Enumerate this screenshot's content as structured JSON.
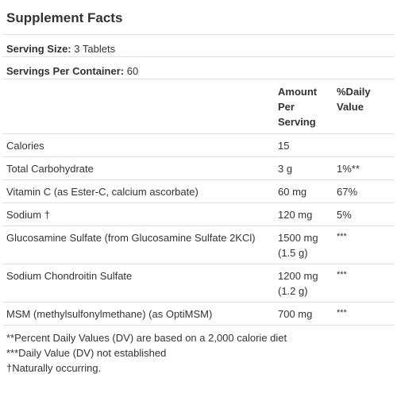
{
  "title": "Supplement Facts",
  "serving_size": {
    "label": "Serving Size:",
    "value": "3 Tablets"
  },
  "servings_per_container": {
    "label": "Servings Per Container:",
    "value": "60"
  },
  "columns": {
    "amount_line1": "Amount",
    "amount_line2": "Per",
    "amount_line3": "Serving",
    "dv_line1": "%Daily",
    "dv_line2": "Value"
  },
  "rows": [
    {
      "name": "Calories",
      "amount": "15",
      "amount2": "",
      "dv": ""
    },
    {
      "name": "Total Carbohydrate",
      "amount": "3 g",
      "amount2": "",
      "dv": "1%**"
    },
    {
      "name": "Vitamin C (as Ester-C, calcium ascorbate)",
      "amount": "60 mg",
      "amount2": "",
      "dv": "67%"
    },
    {
      "name": "Sodium †",
      "amount": "120 mg",
      "amount2": "",
      "dv": "5%"
    },
    {
      "name": "Glucosamine Sulfate (from Glucosamine Sulfate 2KCl)",
      "amount": "1500 mg",
      "amount2": "(1.5 g)",
      "dv": "***"
    },
    {
      "name": "Sodium Chondroitin Sulfate",
      "amount": "1200 mg",
      "amount2": "(1.2 g)",
      "dv": "***"
    },
    {
      "name": "MSM (methylsulfonylmethane) (as OptiMSM)",
      "amount": "700 mg",
      "amount2": "",
      "dv": "***"
    }
  ],
  "footnotes": [
    "**Percent Daily Values (DV) are based on a 2,000 calorie diet",
    "***Daily Value (DV) not established",
    "†Naturally occurring."
  ]
}
